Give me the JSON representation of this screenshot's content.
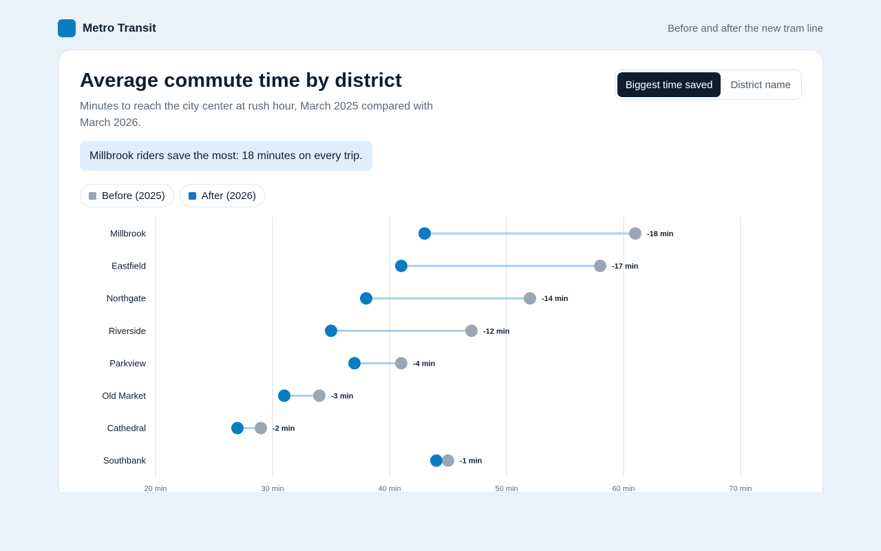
{
  "header": {
    "brand_name": "Metro Transit",
    "tagline": "Before and after the new tram line"
  },
  "card": {
    "title": "Average commute time by district",
    "subtitle": "Minutes to reach the city center at rush hour, March 2025 compared with March 2026.",
    "callout": "Millbrook riders save the most: 18 minutes on every trip."
  },
  "sort": {
    "options": [
      "Biggest time saved",
      "District name"
    ],
    "selected": "Biggest time saved"
  },
  "legend": {
    "before_label": "Before (2025)",
    "after_label": "After (2026)"
  },
  "colors": {
    "before": "#9aa6b2",
    "after": "#0a7cc1",
    "connector": "#a9cfe6",
    "grid": "#e3e8ee"
  },
  "chart_data": {
    "type": "dumbbell",
    "title": "Average commute time by district",
    "xlim": [
      20,
      70
    ],
    "x_ticks": [
      20,
      30,
      40,
      50,
      60,
      70
    ],
    "x_tick_labels": [
      "20 min",
      "30 min",
      "40 min",
      "50 min",
      "60 min",
      "70 min"
    ],
    "grid": true,
    "legend_position": "top-left",
    "categories": [
      "Millbrook",
      "Eastfield",
      "Northgate",
      "Riverside",
      "Parkview",
      "Old Market",
      "Cathedral",
      "Southbank"
    ],
    "series": [
      {
        "name": "Before (2025)",
        "values": [
          61,
          58,
          52,
          47,
          41,
          34,
          29,
          45
        ]
      },
      {
        "name": "After (2026)",
        "values": [
          43,
          41,
          38,
          35,
          37,
          31,
          27,
          44
        ]
      }
    ],
    "data_labels": [
      "-18 min",
      "-17 min",
      "-14 min",
      "-12 min",
      "-4 min",
      "-3 min",
      "-2 min",
      "-1 min"
    ]
  }
}
